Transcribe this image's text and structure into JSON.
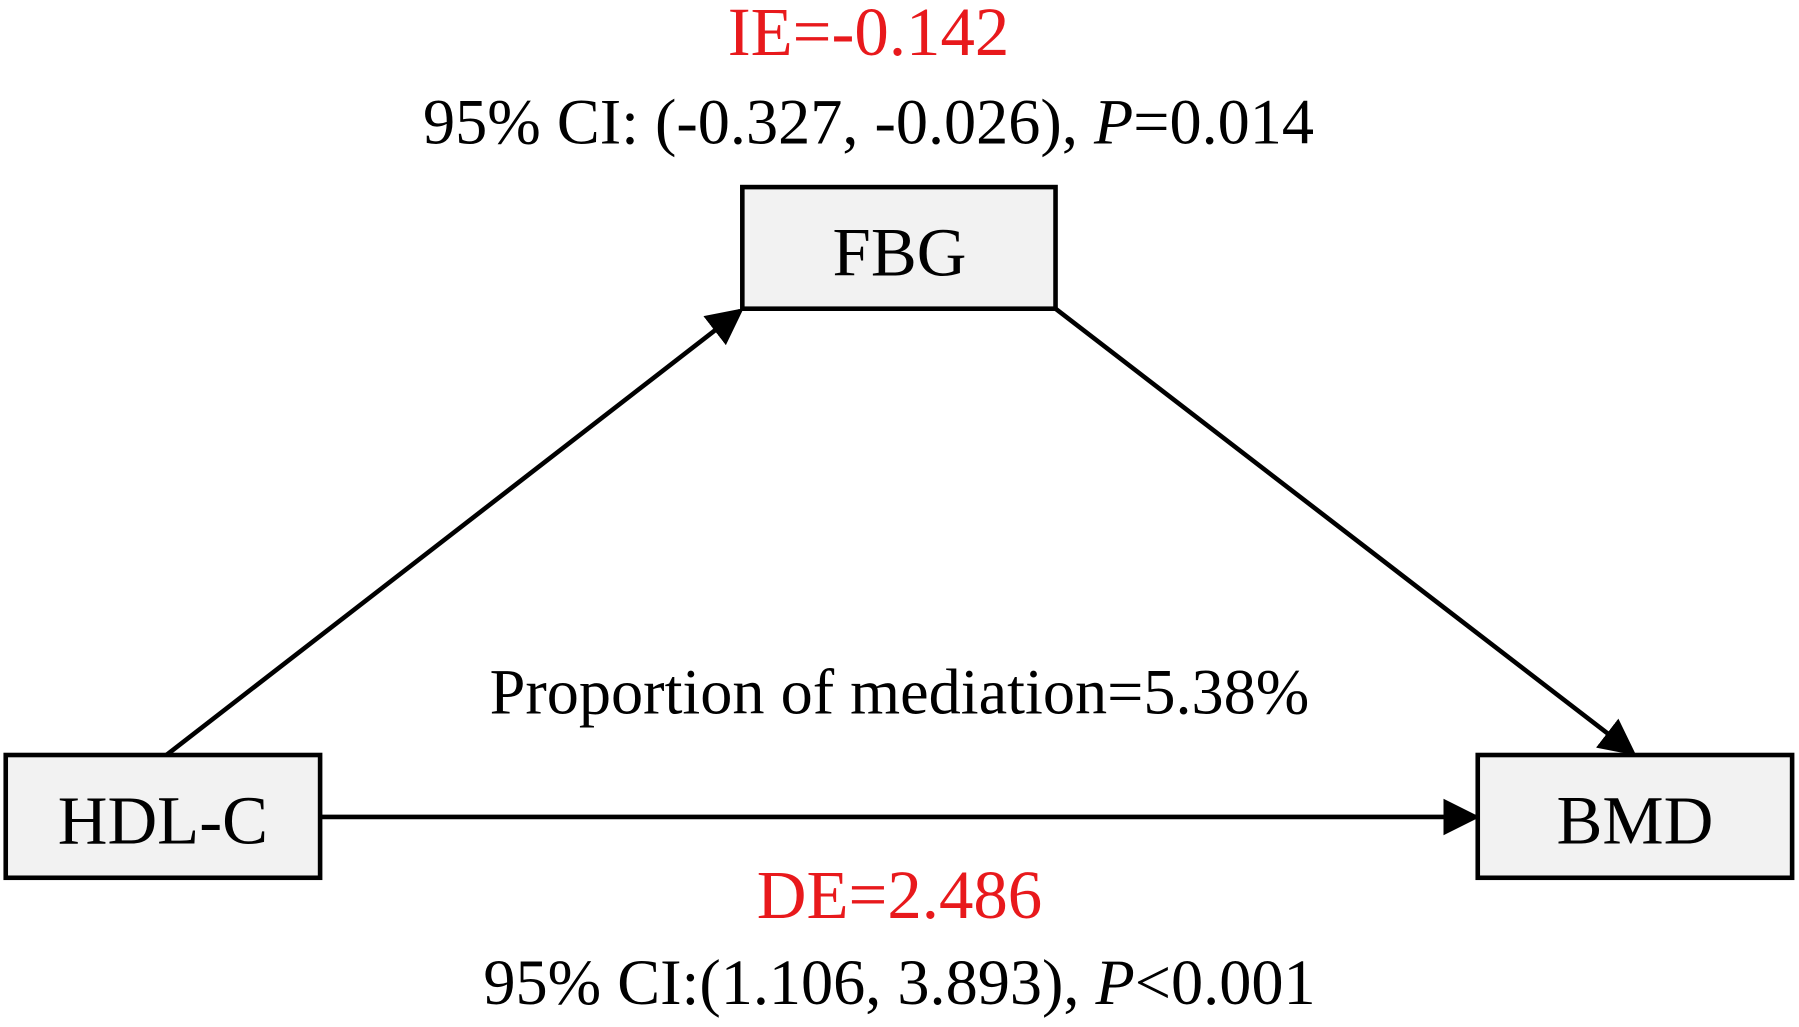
{
  "indirect_effect": {
    "label": "IE=-0.142",
    "ci": "95% CI: (-0.327, -0.026), ",
    "p_symbol": "P",
    "p_value": "=0.014"
  },
  "direct_effect": {
    "label": "DE=2.486",
    "ci": "95% CI:(1.106, 3.893), ",
    "p_symbol": "P",
    "p_value": "<0.001"
  },
  "proportion": "Proportion of mediation=5.38%",
  "nodes": [
    {
      "label": "FBG"
    },
    {
      "label": "HDL-C"
    },
    {
      "label": "BMD"
    }
  ]
}
